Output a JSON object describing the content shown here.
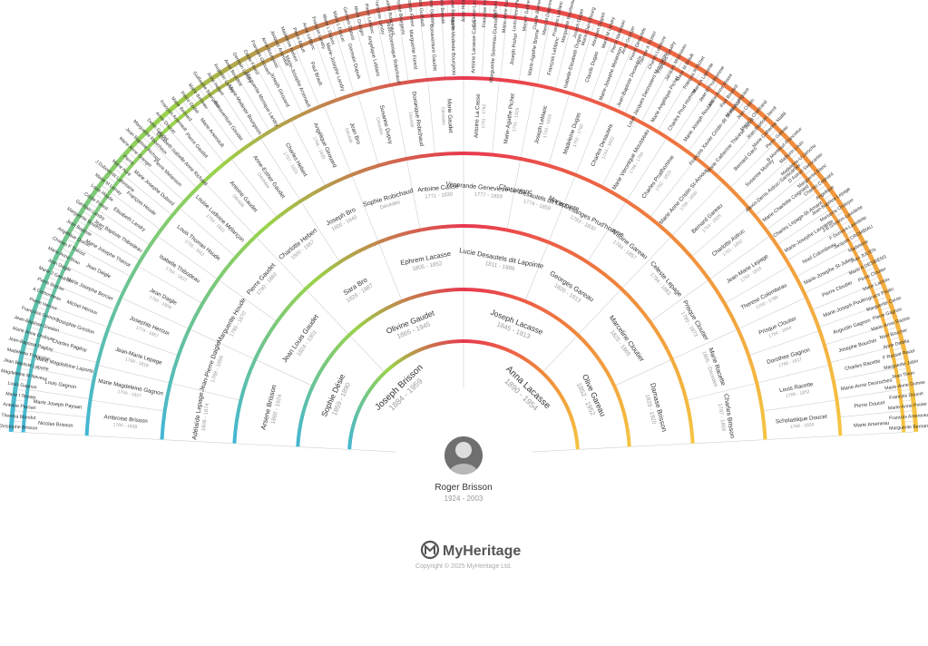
{
  "root": {
    "name": "Roger Brisson",
    "dates": "1924 - 2003"
  },
  "branding": {
    "logo_text": "MyHeritage",
    "copyright": "Copyright © 2025 MyHeritage Ltd."
  },
  "colors": {
    "paternal_gradient": [
      "#41b6d6",
      "#9bd34a",
      "#e8384f"
    ],
    "maternal_gradient": [
      "#e8384f",
      "#f08a3c",
      "#f5c542"
    ],
    "ring_line": "#cfcfcf"
  },
  "generations": [
    [
      {
        "name": "Joseph Brisson",
        "dates": "1884 - 1959"
      },
      {
        "name": "Anna Lacasse",
        "dates": "1890 - 1954"
      }
    ],
    [
      {
        "name": "Sophie Désie",
        "dates": "1859 - 1890"
      },
      {
        "name": "Olivine Gaudet",
        "dates": "1865 - 1945"
      },
      {
        "name": "Joseph Lacasse",
        "dates": "1845 - 1913"
      },
      {
        "name": "Olive Gareau",
        "dates": "1852 - 1952"
      }
    ],
    [
      {
        "name": "Arsene Brisson",
        "dates": "1860 - 1924"
      },
      {
        "name": "Jean Louis Gaudet",
        "dates": "1824 - 1901"
      },
      {
        "name": "Sara Bro",
        "dates": "1828 - 1887"
      },
      {
        "name": "Ephrem Lacasse",
        "dates": "1805 - 1852"
      },
      {
        "name": "Lucie Desautels dit Lapointe",
        "dates": "1811 - 1886"
      },
      {
        "name": "Georges Gareau",
        "dates": "1820 - 1913"
      },
      {
        "name": "Marceline Cloutier",
        "dates": "1825 - 1865"
      },
      {
        "name": "Damase Brisson",
        "dates": "1829 - 1920"
      }
    ],
    [
      {
        "name": "Adélaïde Lepage",
        "dates": "1806 - 1874"
      },
      {
        "name": "Jean-Pierre Daigle",
        "dates": "1788 - 1856"
      },
      {
        "name": "Marguerite Houde",
        "dates": "1789 - 1870"
      },
      {
        "name": "Pierre Gaudet",
        "dates": "1790 - 1860"
      },
      {
        "name": "Charlotte Hebert",
        "dates": "1800 - 1887"
      },
      {
        "name": "Joseph Bro",
        "dates": "1800 - 1840"
      },
      {
        "name": "Sophie Robichaud",
        "dates": "Décédée"
      },
      {
        "name": "Antoine Casse",
        "dates": "1771 - 1830"
      },
      {
        "name": "Venerande Genevieve Leblanc",
        "dates": "1777 - 1859"
      },
      {
        "name": "Charle Desautels dit Lapointe",
        "dates": "1774 - 1859"
      },
      {
        "name": "Marie Desanges Prud'homme",
        "dates": "1783 - 1830"
      },
      {
        "name": "Antoine Gareau",
        "dates": "1784 - 1857"
      },
      {
        "name": "Celeste Lepage",
        "dates": "1794 - 1883"
      },
      {
        "name": "Prisque Cloutier",
        "dates": "1790 - 1873"
      },
      {
        "name": "Marie Racette",
        "dates": "1805 - Décédée"
      },
      {
        "name": "Charles Brisson",
        "dates": "1797 - 1859"
      }
    ],
    [
      {
        "name": "Ambroise Brisson",
        "dates": "1760 - 1838"
      },
      {
        "name": "Marie Magdeleine Gagnon",
        "dates": "1759 - 1827"
      },
      {
        "name": "Jean-Marie Lepage",
        "dates": "1759 - 1818"
      },
      {
        "name": "Josephte Heroux",
        "dates": "1774 - 1857"
      },
      {
        "name": "Jean Daigle",
        "dates": "1760 - 1809"
      },
      {
        "name": "Isabelle Thibodeau",
        "dates": "1764 - 1837"
      },
      {
        "name": "Louis Thomas Houde",
        "dates": "1755 - 1811"
      },
      {
        "name": "Louise Ludivine Mélançon",
        "dates": "1759 - 1821"
      },
      {
        "name": "Antoine Gaudet",
        "dates": "Décédé"
      },
      {
        "name": "Anne-Esther Gaudet",
        "dates": "Décédée"
      },
      {
        "name": "Charles Hebert",
        "dates": "1757 - 1823"
      },
      {
        "name": "Angélique Girouard",
        "dates": "1766 - 1826"
      },
      {
        "name": "Jean Bro",
        "dates": "Décédé"
      },
      {
        "name": "Susanne Dupuy",
        "dates": "Décédée"
      },
      {
        "name": "Dominique Robichaud",
        "dates": "Décédé"
      },
      {
        "name": "Marie Gaudet",
        "dates": "Décédée"
      },
      {
        "name": "Antoine La Casse",
        "dates": "1741 - 1792"
      },
      {
        "name": "Marie-Agathe Pichet",
        "dates": "1751 - 1826"
      },
      {
        "name": "Joseph Leblanc",
        "dates": "1743 - 1818"
      },
      {
        "name": "Madeleine Dugas",
        "dates": "1750 - 1790"
      },
      {
        "name": "Charles Desautels",
        "dates": "1744 - 1822"
      },
      {
        "name": "Marie Véronique Mousseau",
        "dates": "1746 - 1794"
      },
      {
        "name": "Charles Prudhomme",
        "dates": "1752 - 1815"
      },
      {
        "name": "Marie Anne Cristin St-Amour",
        "dates": "1756 - 1830"
      },
      {
        "name": "Bernard Gareau",
        "dates": "1753 - 1828"
      },
      {
        "name": "Charlotte Astruc",
        "dates": "1761 - 1852"
      },
      {
        "name": "Jean-Marie Lepage",
        "dates": "1759 - 1816"
      },
      {
        "name": "Therese Colombeau",
        "dates": "1760 - 1798"
      },
      {
        "name": "Prisque Cloutier",
        "dates": "1764 - 1844"
      },
      {
        "name": "Dorothee Gagnon",
        "dates": "1766 - 1817"
      },
      {
        "name": "Louis Racette",
        "dates": "1769 - 1852"
      },
      {
        "name": "Scholastique Doucet",
        "dates": "1768 - 1826"
      }
    ],
    [
      {
        "name": "Nicolas Brisson"
      },
      {
        "name": "Marie Joseph Paysan"
      },
      {
        "name": "Louis Gagnon"
      },
      {
        "name": "Marie Magdeleine Laporte"
      },
      {
        "name": "Charles Pagésy"
      },
      {
        "name": "Josephte Greslon"
      },
      {
        "name": "Michel Heroux"
      },
      {
        "name": "Marie Josephe Bercier"
      },
      {
        "name": "Jean Daigle"
      },
      {
        "name": "Marie Josephe Thériot"
      },
      {
        "name": "Jean Baptiste Thibodeau"
      },
      {
        "name": "Elisabeth Landry"
      },
      {
        "name": "François Houde"
      },
      {
        "name": "Marie Josephe Dubord"
      },
      {
        "name": "Pierre Melanson"
      },
      {
        "name": "Elisabeth Isabelle Anne Richard"
      },
      {
        "name": "Pierre Gaudet"
      },
      {
        "name": "Marie Arsenault"
      },
      {
        "name": "Bonaventure Gaudet"
      },
      {
        "name": "Marie-Modeste Bourgeois"
      },
      {
        "name": "Marguerite Monique Landry"
      },
      {
        "name": "Joseph Girouard"
      },
      {
        "name": "Marie-Josephe Arsenault"
      },
      {
        "name": "Paul Brault"
      },
      {
        "name": "Marie-Josephe Landry"
      },
      {
        "name": "Germain Dupuis"
      },
      {
        "name": "Angelique Leblanc"
      },
      {
        "name": "Jean-Dominique Robichaud"
      },
      {
        "name": "Marguerite Forest"
      },
      {
        "name": "Bonaventure Gaudet"
      },
      {
        "name": "Marie-Modeste Bourgeois"
      },
      {
        "name": "Antoine Lacasse-Casse"
      },
      {
        "name": "Marguerite Sionneau-Dumoulin"
      },
      {
        "name": "Joseph Pichet"
      },
      {
        "name": "Marie-Agathe Breme"
      },
      {
        "name": "François Leblanc"
      },
      {
        "name": "Isabelle-Elisabeth Dugas"
      },
      {
        "name": "Claude Dugas"
      },
      {
        "name": "Marie-Josephe Melanson"
      },
      {
        "name": "Jean-Baptiste Desautels"
      },
      {
        "name": "Louis Jacques Desrosiers Mousseau"
      },
      {
        "name": "Marie Angélique Pichet"
      },
      {
        "name": "Charles Prud Homme"
      },
      {
        "name": "Marie Joseph Roulard"
      },
      {
        "name": "François Xavier Cristin dit St-Amour"
      },
      {
        "name": "Marie Catherine Thérèse Jarrot"
      },
      {
        "name": "Bernard Garo"
      },
      {
        "name": "Susanne Morrey"
      },
      {
        "name": "Alexis-Denis Astruc-Sanscartier"
      },
      {
        "name": "Marie-Charlotte Coignard"
      },
      {
        "name": "Charles Lepage-St-Amant"
      },
      {
        "name": "Marie-Josephe Laviolette"
      },
      {
        "name": "Noel Colombeau"
      },
      {
        "name": "Marie-Josephe St-Julien"
      },
      {
        "name": "Pierre Cloutier"
      },
      {
        "name": "Marie-Joseph Poulin"
      },
      {
        "name": "Augustin Gagnon"
      },
      {
        "name": "Josephe Boucher"
      },
      {
        "name": "Charles Racette"
      },
      {
        "name": "Marie-Anne Desroches"
      },
      {
        "name": "Pierre Doucet"
      },
      {
        "name": "Marie Arseneau"
      }
    ],
    [
      {
        "name": "Christophe Brisson"
      },
      {
        "name": "Theresa Blondot"
      },
      {
        "name": "Antoine Paysan"
      },
      {
        "name": "Marie I Tessier"
      },
      {
        "name": "Louis Gagnon"
      },
      {
        "name": "Magdeleine M Neveux"
      },
      {
        "name": "Jean Baptiste Laporte"
      },
      {
        "name": "Madeleine Françoise"
      },
      {
        "name": "Jean-Baptiste Pagésy"
      },
      {
        "name": "Marie Anne Ondoyer"
      },
      {
        "name": "Jean-Baptiste Greslon"
      },
      {
        "name": "Françoise Dumont"
      },
      {
        "name": "Pierre Heroux"
      },
      {
        "name": "A Carbonneau"
      },
      {
        "name": "Pierre Bercier"
      },
      {
        "name": "Marie J Gendron"
      },
      {
        "name": "Jean Daigle"
      },
      {
        "name": "Marie Anne Brau"
      },
      {
        "name": "Charles F Thériot"
      },
      {
        "name": "Angélique Doiron"
      },
      {
        "name": "Jean Baptiste"
      },
      {
        "name": "Marguerite Boudrot"
      },
      {
        "name": "Germain Landry"
      },
      {
        "name": "Cécile Forest"
      },
      {
        "name": "Louis Houde"
      },
      {
        "name": "Marie M Lemay"
      },
      {
        "name": "J Dubord dit Lafontaine"
      },
      {
        "name": "Marie Auré"
      },
      {
        "name": "Pierre"
      },
      {
        "name": "Marie Anne Granger"
      },
      {
        "name": "Jean Baptiste Richard"
      },
      {
        "name": "Marguerite Robichaux"
      },
      {
        "name": "Denis Gaudet"
      },
      {
        "name": "Anne Doucet"
      },
      {
        "name": "François Arsenault"
      },
      {
        "name": "Marie Bernard"
      },
      {
        "name": "Pierre Godet"
      },
      {
        "name": "Marie Berreau"
      },
      {
        "name": "Guillaume Bourgeois"
      },
      {
        "name": "Anne Hebert"
      },
      {
        "name": "Augustin Landry"
      },
      {
        "name": "Anne Bourdrot"
      },
      {
        "name": "Germain Landry"
      },
      {
        "name": "Cecile Forest"
      },
      {
        "name": "François Girouard"
      },
      {
        "name": "Anne Bourgeois"
      },
      {
        "name": "Jacques Arsenault"
      },
      {
        "name": "Madeleine Hebert"
      },
      {
        "name": "Pierre Brault"
      },
      {
        "name": "Anne Leblanc"
      },
      {
        "name": "François Landry"
      },
      {
        "name": "Marie L Dupuis"
      },
      {
        "name": "Marie L Doucet"
      },
      {
        "name": "Germain Dupuis"
      },
      {
        "name": "Marie Granger"
      },
      {
        "name": "Pierre Leblanc"
      },
      {
        "name": "Françoise Landry"
      },
      {
        "name": "Prudent Robichaud"
      },
      {
        "name": "Françoise Bourgeois"
      },
      {
        "name": "Joseph Forest"
      },
      {
        "name": "Marie Guilbault"
      },
      {
        "name": "Pierre Gaudet"
      },
      {
        "name": "Marie Brevelé"
      },
      {
        "name": "Guillaume Bourgeois"
      },
      {
        "name": "Anne Hebert"
      },
      {
        "name": "C Casse-Lacasse"
      },
      {
        "name": "Françoise Pequet"
      },
      {
        "name": "Mathurin"
      },
      {
        "name": "Marie-Anne Guilbault"
      },
      {
        "name": "Louis Pierre Pichet"
      },
      {
        "name": "Marie F Gatineau"
      },
      {
        "name": "Claude Breme"
      },
      {
        "name": "Marie M Dagonne"
      },
      {
        "name": "François Leblanc"
      },
      {
        "name": "Marguerite Bourbeau"
      },
      {
        "name": "Joseph Dugas"
      },
      {
        "name": "Marie-Claire Bourg"
      },
      {
        "name": "Abraham Dugast"
      },
      {
        "name": "Marie M Landry"
      },
      {
        "name": "Pierre Melanson"
      },
      {
        "name": "Anne Granger"
      },
      {
        "name": "Pierre Desautels"
      },
      {
        "name": "Therese A Trottier"
      },
      {
        "name": "Charles Lefebvre"
      },
      {
        "name": "François Gaudry"
      },
      {
        "name": "Jacques Mousseau"
      },
      {
        "name": "Marie M Brault"
      },
      {
        "name": "François R Pichet"
      },
      {
        "name": "Marie A Lapointe"
      },
      {
        "name": "Jean B Prudhomme"
      },
      {
        "name": "Marie Anne Moore"
      },
      {
        "name": "Paul Boulard"
      },
      {
        "name": "Marie Andegrave"
      },
      {
        "name": "Jean Cristin"
      },
      {
        "name": "Marie S Chartrand"
      },
      {
        "name": "Jean-Baptiste Jarrot"
      },
      {
        "name": "Marie Catherine Maillé"
      },
      {
        "name": "Pierre Gareau"
      },
      {
        "name": "B Montreuil-Francoeur"
      },
      {
        "name": "Mathurin Louis"
      },
      {
        "name": "Madeleine-U Laroche"
      },
      {
        "name": "D Astruc-Sanscartier"
      },
      {
        "name": "Marguerite Blanc"
      },
      {
        "name": "Charles Cognard"
      },
      {
        "name": "Angelique"
      },
      {
        "name": "Jean-Baptiste Lepage"
      },
      {
        "name": "Marianne Ondoyer"
      },
      {
        "name": "J-B Greslon-Laviolette"
      },
      {
        "name": "F Dumont-Laviolette"
      },
      {
        "name": "Jacques CROMBIAU"
      },
      {
        "name": "Madeleine"
      },
      {
        "name": "Jean JULIEN"
      },
      {
        "name": "Marie A DESBIENS"
      },
      {
        "name": "Pierre Cloutier"
      },
      {
        "name": "Marie Lacroix"
      },
      {
        "name": "Ignace Poulin"
      },
      {
        "name": "Marguerite Caron"
      },
      {
        "name": "Pierre Gagnon"
      },
      {
        "name": "Marie-Anne Racine"
      },
      {
        "name": "Noel Boucher"
      },
      {
        "name": "Anne Debilia"
      },
      {
        "name": "F Rassat-Racet"
      },
      {
        "name": "Marguerite Jobin"
      },
      {
        "name": "Jean Tinon"
      },
      {
        "name": "Marie-Anne Dumas"
      },
      {
        "name": "Francois Doucet"
      },
      {
        "name": "Marie-Anne Poirier"
      },
      {
        "name": "Francois Arseneau"
      },
      {
        "name": "Marguerite Bernard"
      }
    ]
  ]
}
